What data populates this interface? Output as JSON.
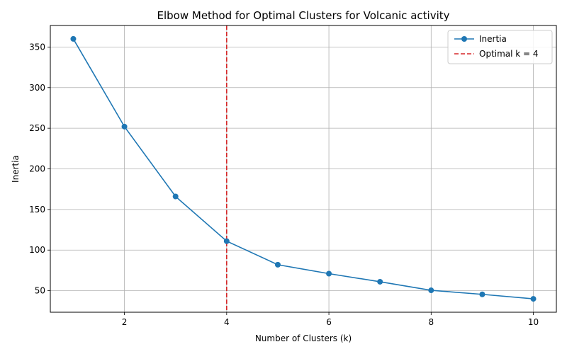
{
  "chart_data": {
    "type": "line",
    "title": "Elbow Method for Optimal Clusters for Volcanic activity",
    "xlabel": "Number of Clusters (k)",
    "ylabel": "Inertia",
    "xlim": [
      0.55,
      10.45
    ],
    "ylim": [
      23.5,
      376.5
    ],
    "xticks": [
      2,
      4,
      6,
      8,
      10
    ],
    "yticks": [
      50,
      100,
      150,
      200,
      250,
      300,
      350
    ],
    "grid": true,
    "legend_position": "top-right",
    "series": [
      {
        "name": "Inertia",
        "color": "#1f77b4",
        "marker": "circle",
        "x": [
          1,
          2,
          3,
          4,
          5,
          6,
          7,
          8,
          9,
          10
        ],
        "y": [
          360,
          252,
          166,
          111,
          82,
          71,
          61,
          50.5,
          45.5,
          40
        ]
      }
    ],
    "vlines": [
      {
        "x": 4,
        "label": "Optimal k = 4",
        "color": "#d62728",
        "style": "dashed"
      }
    ]
  }
}
